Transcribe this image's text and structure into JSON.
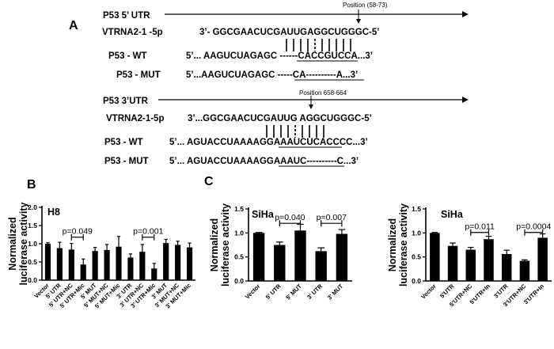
{
  "panel_labels": {
    "a": "A",
    "b": "B",
    "c": "C"
  },
  "part_a": {
    "utr5": {
      "header": "P53  5’ UTR",
      "position": "Position (58-73)",
      "mirna_label": "VTRNA2-1 -5p",
      "mirna_seq": "3’- GGCGAACUCGAUUGAGGCUGGGC-5’",
      "wt_label": "P53 - WT",
      "wt_seq": "5’... AAGUCUAGAGC ------CACCGUCCA...3’",
      "mut_label": "P53 - MUT",
      "mut_seq": "5’...AAGUCUAGAGC -----CA----------A...3’"
    },
    "utr3": {
      "header": "P53  3’UTR",
      "position": "Position 658-664",
      "mirna_label": "VTRNA2-1-5p",
      "mirna_seq": "3’...GGCGAACUCGAUUG AGGCUGGGC-5’",
      "wt_label": "P53 - WT",
      "wt_seq": "5’... AGUACCUAAAAGGAAAUCUCACCCC...3’",
      "mut_label": "P53 - MUT",
      "mut_seq": "5’... AGUACCUAAAAGGAAAUC----------C...3’"
    }
  },
  "chart_data": [
    {
      "type": "bar",
      "panel": "B",
      "title": "H8",
      "ylabel": "Normalized luciferase activity",
      "ylim": [
        0,
        2.0
      ],
      "yticks": [
        "0.0",
        "0.5",
        "1.0",
        "1.5",
        "2.0"
      ],
      "categories": [
        "Vector",
        "5' UTR",
        "5' UTR+NC",
        "5' UTR+Mic",
        "5' MUT",
        "5' MUT+NC",
        "5' MUT+Mic",
        "3' UTR",
        "3' UTR+NC",
        "3' UTR+Mic",
        "3' MUT",
        "3' MUT+NC",
        "3' MUT+Mic"
      ],
      "values": [
        1.0,
        0.88,
        0.84,
        0.43,
        0.8,
        0.83,
        0.92,
        0.62,
        0.78,
        0.32,
        1.02,
        0.97,
        0.9
      ],
      "errors": [
        0.03,
        0.16,
        0.17,
        0.15,
        0.1,
        0.15,
        0.28,
        0.1,
        0.2,
        0.14,
        0.1,
        0.1,
        0.12
      ],
      "annotations": [
        {
          "text": "p=0.049",
          "from": 2,
          "to": 3,
          "y": 1.18
        },
        {
          "text": "p=0.001",
          "from": 8,
          "to": 9,
          "y": 1.18
        }
      ]
    },
    {
      "type": "bar",
      "panel": "C",
      "title": "SiHa",
      "ylabel": "Normalized luciferase activity",
      "ylim": [
        0,
        1.5
      ],
      "yticks": [
        "0.0",
        "0.5",
        "1.0",
        "1.5"
      ],
      "categories": [
        "Vector",
        "5' UTR",
        "5' MUT",
        "3' UTR",
        "3' MUT"
      ],
      "values": [
        1.0,
        0.75,
        1.05,
        0.62,
        0.98
      ],
      "errors": [
        0.01,
        0.06,
        0.13,
        0.07,
        0.09
      ],
      "annotations": [
        {
          "text": "p=0.040",
          "from": 1,
          "to": 2,
          "y": 1.2
        },
        {
          "text": "p=0.007",
          "from": 3,
          "to": 4,
          "y": 1.2
        }
      ]
    },
    {
      "type": "bar",
      "panel": "C",
      "title": "SiHa",
      "ylabel": "Normalized luciferase activity",
      "ylim": [
        0,
        1.5
      ],
      "yticks": [
        "0.0",
        "0.5",
        "1.0",
        "1.5"
      ],
      "categories": [
        "Vector",
        "5'UTR",
        "5'UTR+NC",
        "5'UTR+In",
        "3'UTR",
        "3'UTR+NC",
        "3'UTR+In"
      ],
      "values": [
        1.0,
        0.73,
        0.65,
        0.87,
        0.56,
        0.42,
        0.9
      ],
      "errors": [
        0.01,
        0.06,
        0.05,
        0.06,
        0.08,
        0.02,
        0.08
      ],
      "annotations": [
        {
          "text": "p=0.011",
          "from": 2,
          "to": 3,
          "y": 1.01
        },
        {
          "text": "p=0.0004",
          "from": 5,
          "to": 6,
          "y": 1.01
        }
      ]
    }
  ]
}
